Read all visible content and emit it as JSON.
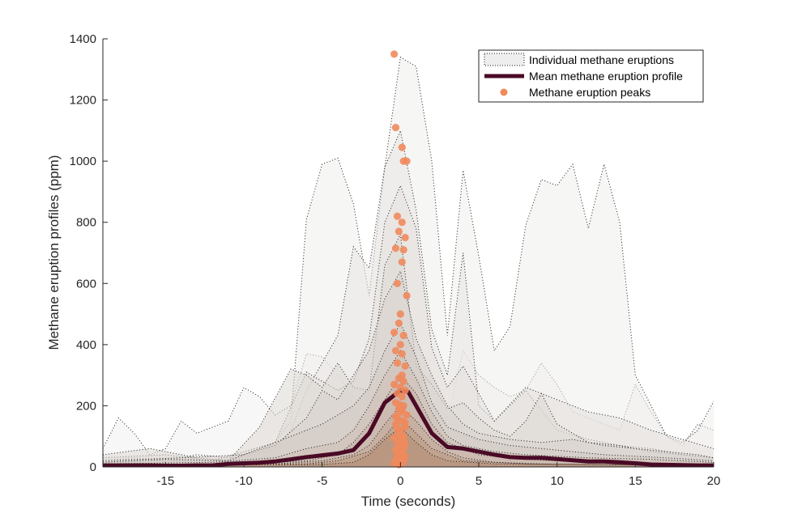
{
  "chart_data": {
    "type": "area",
    "title": "",
    "xlabel": "Time (seconds)",
    "ylabel": "Methane eruption profiles (ppm)",
    "xlim": [
      -19,
      20
    ],
    "ylim": [
      0,
      1400
    ],
    "xticks": [
      -15,
      -10,
      -5,
      0,
      5,
      10,
      15,
      20
    ],
    "yticks": [
      0,
      200,
      400,
      600,
      800,
      1000,
      1200,
      1400
    ],
    "grid": false,
    "legend_position": "top-right",
    "legend": [
      {
        "label": "Individual methane eruptions",
        "style": "dotted-area"
      },
      {
        "label": "Mean methane eruption profile",
        "style": "thick-line"
      },
      {
        "label": "Methane eruption peaks",
        "style": "marker"
      }
    ],
    "colors": {
      "individual_fill": "#d9d4d0",
      "individual_line": "#1a1a1a",
      "mean_line": "#4a0a26",
      "peak_marker": "#f08a5d"
    },
    "individual_eruptions": [
      {
        "x": [
          -19,
          -18,
          -17,
          -16,
          -15,
          -14,
          -13,
          -12,
          -11,
          -10,
          -9,
          -8,
          -7,
          -6,
          -5,
          -4,
          -3,
          -2,
          -1,
          0,
          1,
          2,
          3,
          4,
          5,
          6,
          7,
          8,
          9,
          10,
          11,
          12,
          13,
          14,
          15,
          16,
          17,
          18,
          19,
          20
        ],
        "y": [
          60,
          160,
          110,
          40,
          60,
          150,
          110,
          130,
          150,
          260,
          230,
          170,
          200,
          370,
          360,
          300,
          230,
          160,
          150,
          260,
          250,
          200,
          160,
          380,
          300,
          260,
          230,
          250,
          340,
          270,
          180,
          160,
          140,
          120,
          270,
          180,
          100,
          70,
          140,
          120
        ]
      },
      {
        "x": [
          -19,
          -17,
          -15,
          -13,
          -11,
          -9,
          -8,
          -7,
          -6,
          -5,
          -4,
          -3,
          -2,
          -1,
          0,
          1,
          2,
          3,
          4,
          5,
          6,
          7,
          8,
          9,
          10,
          11,
          12,
          13,
          14,
          15,
          16,
          17,
          18,
          19,
          20
        ],
        "y": [
          20,
          30,
          20,
          40,
          30,
          50,
          80,
          150,
          810,
          990,
          1010,
          860,
          560,
          980,
          1340,
          1310,
          1000,
          430,
          970,
          690,
          380,
          460,
          790,
          940,
          920,
          990,
          780,
          990,
          800,
          300,
          200,
          100,
          80,
          120,
          215
        ]
      },
      {
        "x": [
          -19,
          -16,
          -13,
          -10,
          -8,
          -7,
          -6,
          -5,
          -4,
          -3,
          -2,
          -1,
          0,
          1,
          2,
          3,
          4,
          5,
          6,
          7,
          8,
          10,
          12,
          14,
          16,
          18,
          20
        ],
        "y": [
          10,
          20,
          15,
          30,
          60,
          120,
          250,
          340,
          430,
          720,
          650,
          980,
          1100,
          840,
          450,
          300,
          700,
          200,
          150,
          200,
          250,
          120,
          90,
          70,
          60,
          40,
          30
        ]
      },
      {
        "x": [
          -19,
          -15,
          -12,
          -10,
          -8,
          -6,
          -4,
          -3,
          -2,
          -1,
          0,
          1,
          2,
          3,
          4,
          5,
          6,
          8,
          10,
          12,
          14,
          16,
          18,
          20
        ],
        "y": [
          30,
          40,
          20,
          50,
          80,
          310,
          250,
          280,
          420,
          800,
          920,
          780,
          390,
          260,
          330,
          240,
          150,
          260,
          220,
          180,
          160,
          120,
          90,
          60
        ]
      },
      {
        "x": [
          -19,
          -16,
          -13,
          -11,
          -9,
          -7,
          -6,
          -5,
          -4,
          -3,
          -2,
          -1,
          0,
          1,
          2,
          3,
          4,
          5,
          6,
          7,
          8,
          9,
          10,
          12,
          14,
          16,
          18,
          20
        ],
        "y": [
          40,
          60,
          30,
          20,
          130,
          320,
          300,
          260,
          340,
          260,
          250,
          660,
          760,
          330,
          270,
          190,
          210,
          160,
          120,
          100,
          150,
          240,
          140,
          80,
          70,
          50,
          40,
          30
        ]
      },
      {
        "x": [
          -19,
          -14,
          -10,
          -8,
          -6,
          -5,
          -4,
          -3,
          -2,
          -1,
          0,
          1,
          2,
          3,
          4,
          5,
          7,
          9,
          11,
          13,
          15,
          17,
          19,
          20
        ],
        "y": [
          20,
          30,
          40,
          70,
          160,
          250,
          220,
          300,
          380,
          550,
          640,
          420,
          300,
          200,
          140,
          110,
          90,
          80,
          90,
          70,
          60,
          50,
          40,
          30
        ]
      },
      {
        "x": [
          -19,
          -15,
          -11,
          -9,
          -7,
          -5,
          -3,
          -2,
          -1,
          0,
          1,
          2,
          3,
          5,
          7,
          9,
          11,
          13,
          15,
          17,
          20
        ],
        "y": [
          15,
          25,
          20,
          60,
          100,
          140,
          200,
          260,
          380,
          470,
          360,
          210,
          130,
          90,
          70,
          60,
          50,
          40,
          35,
          30,
          20
        ]
      },
      {
        "x": [
          -19,
          -12,
          -8,
          -6,
          -4,
          -3,
          -2,
          -1,
          0,
          1,
          2,
          3,
          4,
          6,
          8,
          10,
          12,
          16,
          20
        ],
        "y": [
          10,
          15,
          30,
          60,
          80,
          120,
          200,
          300,
          380,
          290,
          180,
          100,
          70,
          50,
          40,
          35,
          30,
          25,
          15
        ]
      },
      {
        "x": [
          -19,
          -10,
          -6,
          -4,
          -3,
          -2,
          -1,
          0,
          1,
          2,
          3,
          5,
          8,
          12,
          16,
          20
        ],
        "y": [
          5,
          10,
          20,
          40,
          80,
          140,
          220,
          300,
          240,
          140,
          80,
          40,
          25,
          15,
          10,
          5
        ]
      },
      {
        "x": [
          -19,
          -8,
          -5,
          -3,
          -2,
          -1,
          0,
          1,
          2,
          3,
          4,
          6,
          10,
          20
        ],
        "y": [
          5,
          10,
          20,
          40,
          70,
          140,
          200,
          150,
          90,
          50,
          30,
          15,
          8,
          5
        ]
      },
      {
        "x": [
          -19,
          -6,
          -4,
          -2,
          -1,
          0,
          1,
          2,
          4,
          8,
          20
        ],
        "y": [
          5,
          10,
          20,
          50,
          100,
          160,
          110,
          60,
          20,
          10,
          5
        ]
      },
      {
        "x": [
          -19,
          -5,
          -3,
          -2,
          -1,
          0,
          1,
          2,
          3,
          6,
          20
        ],
        "y": [
          5,
          8,
          15,
          40,
          90,
          130,
          80,
          40,
          20,
          10,
          5
        ]
      }
    ],
    "mean_profile": {
      "name": "Mean methane eruption profile",
      "x": [
        -19,
        -18,
        -17,
        -16,
        -15,
        -14,
        -13,
        -12,
        -11,
        -10,
        -9,
        -8,
        -7,
        -6,
        -5,
        -4,
        -3,
        -2,
        -1,
        0,
        0.5,
        1,
        2,
        3,
        4,
        5,
        6,
        7,
        8,
        9,
        10,
        11,
        12,
        13,
        14,
        15,
        16,
        17,
        18,
        19,
        20
      ],
      "y": [
        5,
        5,
        5,
        5,
        4,
        4,
        5,
        5,
        10,
        12,
        14,
        18,
        25,
        32,
        38,
        44,
        55,
        110,
        210,
        250,
        245,
        200,
        110,
        65,
        60,
        50,
        40,
        32,
        30,
        30,
        26,
        22,
        18,
        18,
        15,
        12,
        8,
        7,
        6,
        5,
        5
      ]
    },
    "peaks": {
      "name": "Methane eruption peaks",
      "x": [
        -0.4,
        -0.3,
        0.1,
        0.2,
        0.4,
        -0.2,
        0.1,
        -0.1,
        0.3,
        -0.3,
        0.2,
        0.1,
        -0.2,
        0.4,
        0.0,
        -0.1,
        -0.4,
        0.2,
        0.0,
        -0.3,
        0.1,
        -0.2,
        0.3,
        0.1,
        -0.1,
        0.2,
        -0.4,
        0.0,
        0.3,
        -0.2,
        0.1,
        -0.3,
        0.2,
        -0.1,
        0.0,
        0.4,
        -0.2,
        0.1,
        -0.3,
        0.3,
        0.0,
        -0.1,
        0.2,
        -0.4,
        0.1,
        -0.2,
        0.3,
        0.0,
        -0.1,
        0.2,
        -0.3,
        0.1,
        0.0,
        -0.2,
        0.3,
        -0.1,
        0.1,
        -0.3,
        0.2,
        0.0,
        -0.4,
        0.1,
        -0.1,
        0.2,
        0.0,
        -0.2,
        0.3,
        -0.3,
        0.1,
        -0.1
      ],
      "y": [
        1350,
        1110,
        1045,
        1000,
        1000,
        820,
        800,
        770,
        750,
        715,
        710,
        670,
        600,
        560,
        500,
        470,
        440,
        430,
        400,
        380,
        370,
        340,
        330,
        300,
        290,
        280,
        270,
        260,
        250,
        240,
        230,
        210,
        200,
        190,
        180,
        170,
        160,
        150,
        140,
        130,
        120,
        110,
        100,
        95,
        90,
        80,
        75,
        70,
        65,
        60,
        55,
        50,
        45,
        40,
        35,
        30,
        25,
        22,
        20,
        15,
        12,
        10,
        8,
        85,
        105,
        125,
        145,
        165,
        185,
        205
      ]
    }
  }
}
